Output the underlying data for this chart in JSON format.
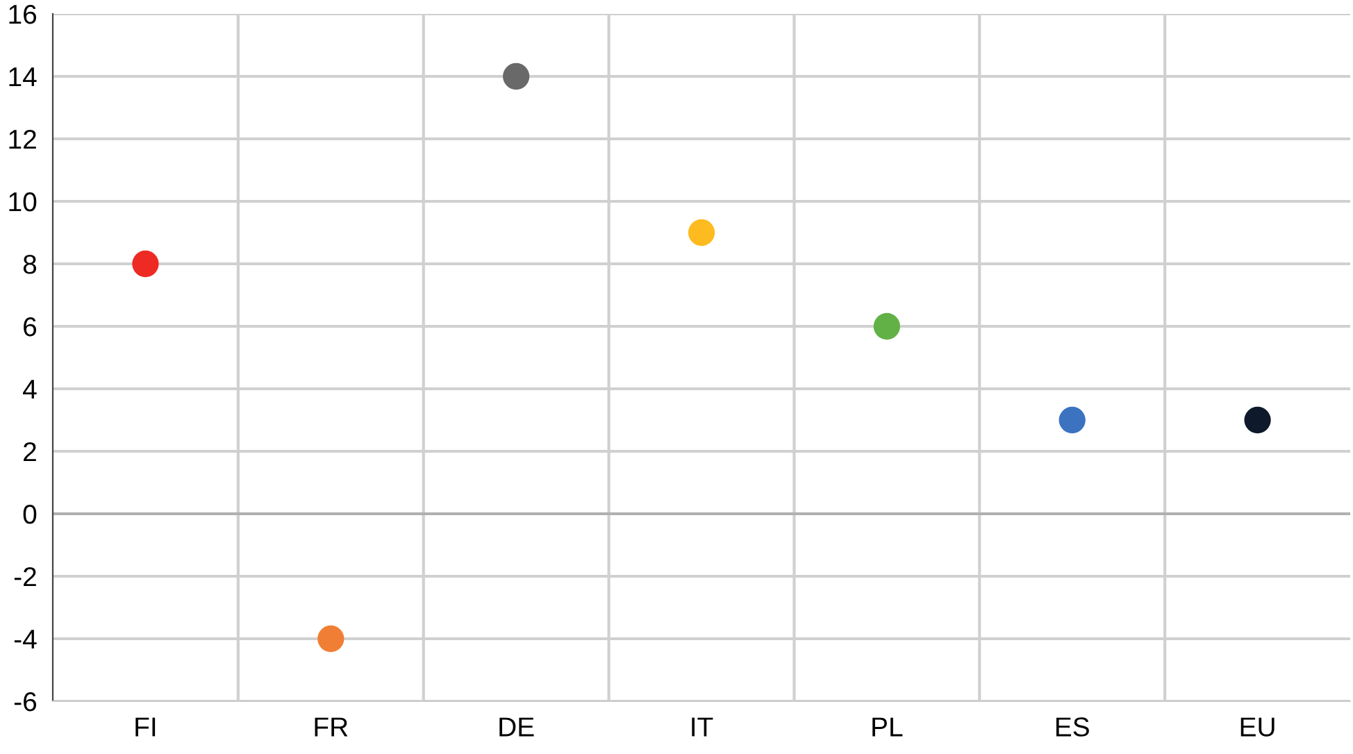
{
  "chart_data": {
    "type": "scatter",
    "categories": [
      "FI",
      "FR",
      "DE",
      "IT",
      "PL",
      "ES",
      "EU"
    ],
    "values": [
      8,
      -4,
      14,
      9,
      6,
      3,
      3
    ],
    "colors": [
      "#ee2a24",
      "#f07f35",
      "#696969",
      "#fdbb1f",
      "#62b146",
      "#3b73c1",
      "#0e1a2b"
    ],
    "ylim": [
      -6,
      16
    ],
    "yticks": [
      -6,
      -4,
      -2,
      0,
      2,
      4,
      6,
      8,
      10,
      12,
      14,
      16
    ],
    "grid": true,
    "marker": "circle"
  }
}
